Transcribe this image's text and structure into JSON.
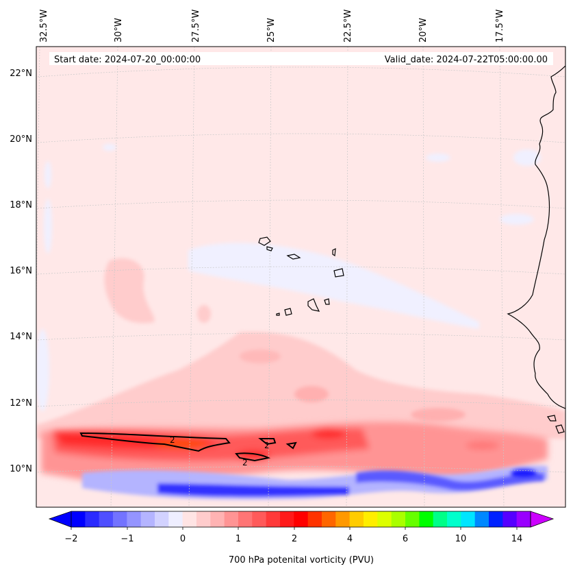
{
  "header": {
    "start_date": "Start date: 2024-07-20_00:00:00",
    "valid_date": "Valid_date: 2024-07-22T05:00:00.00"
  },
  "map": {
    "lon_labels": [
      "32.5°W",
      "30°W",
      "27.5°W",
      "25°W",
      "22.5°W",
      "20°W",
      "17.5°W"
    ],
    "lat_labels": [
      "22°N",
      "20°N",
      "18°N",
      "16°N",
      "14°N",
      "12°N",
      "10°N"
    ],
    "contour_labels": [
      "2",
      "2",
      "2"
    ],
    "colors": {
      "background": "#ffe8e8",
      "negative_band": "#f0f0ff",
      "blue_strong": "#1010ff",
      "red_strong": "#ff1a1a",
      "orange": "#ff6a00"
    }
  },
  "colorbar": {
    "tick_labels": [
      "−2",
      "−1",
      "0",
      "1",
      "2",
      "4",
      "6",
      "10",
      "14"
    ],
    "label": "700 hPa potenital vorticity (PVU)",
    "colors": [
      "#0000ff",
      "#2a2aff",
      "#4f4fff",
      "#7373ff",
      "#9494ff",
      "#b4b4ff",
      "#d2d2ff",
      "#eeeeff",
      "#ffe4e4",
      "#ffcccc",
      "#ffb3b3",
      "#ff9494",
      "#ff7575",
      "#ff5a5a",
      "#ff3a3a",
      "#ff1a1a",
      "#ff0000",
      "#ff3300",
      "#ff6600",
      "#ff9900",
      "#ffcc00",
      "#ffee00",
      "#ddff00",
      "#aaff00",
      "#66ff00",
      "#00ff00",
      "#00ff88",
      "#00ffcc",
      "#00e5ff",
      "#0088ff",
      "#0022ff",
      "#5500ff",
      "#9900ff"
    ]
  }
}
